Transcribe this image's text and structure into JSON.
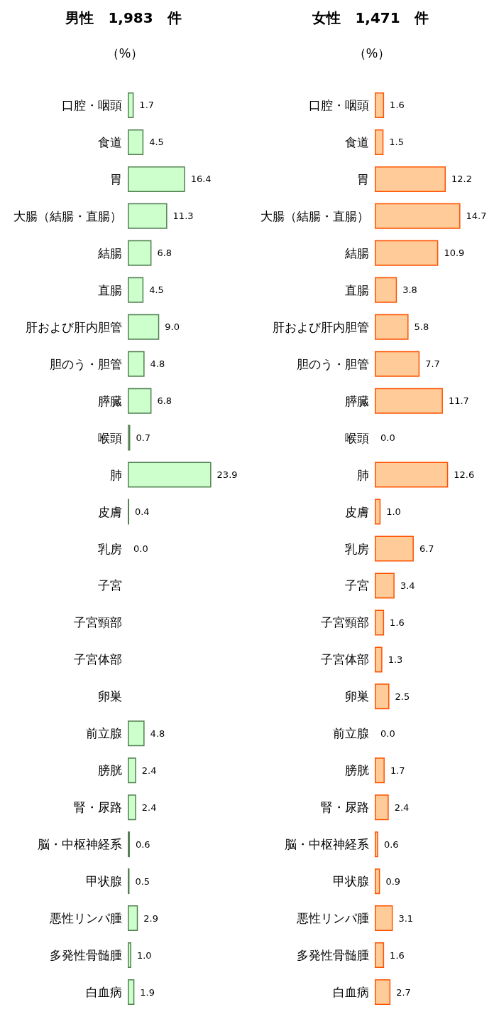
{
  "chart_data": [
    {
      "type": "bar",
      "orientation": "horizontal",
      "title": "男性　1,983　件",
      "xlabel": "（%）",
      "categories": [
        "口腔・咽頭",
        "食道",
        "胃",
        "大腸（結腸・直腸）",
        "結腸",
        "直腸",
        "肝および肝内胆管",
        "胆のう・胆管",
        "膵臓",
        "喉頭",
        "肺",
        "皮膚",
        "乳房",
        "子宮",
        "子宮頸部",
        "子宮体部",
        "卵巣",
        "前立腺",
        "膀胱",
        "腎・尿路",
        "脳・中枢神経系",
        "甲状腺",
        "悪性リンパ腫",
        "多発性骨髄腫",
        "白血病"
      ],
      "values": [
        1.7,
        4.5,
        16.4,
        11.3,
        6.8,
        4.5,
        9.0,
        4.8,
        6.8,
        0.7,
        23.9,
        0.4,
        0.0,
        null,
        null,
        null,
        null,
        4.8,
        2.4,
        2.4,
        0.6,
        0.5,
        2.9,
        1.0,
        1.9
      ],
      "value_labels": [
        "1.7",
        "4.5",
        "16.4",
        "11.3",
        "6.8",
        "4.5",
        "9.0",
        "4.8",
        "6.8",
        "0.7",
        "23.9",
        "0.4",
        "0.0",
        null,
        null,
        null,
        null,
        "4.8",
        "2.4",
        "2.4",
        "0.6",
        "0.5",
        "2.9",
        "1.0",
        "1.9"
      ],
      "color": "#ccffcc"
    },
    {
      "type": "bar",
      "orientation": "horizontal",
      "title": "女性　1,471　件",
      "xlabel": "（%）",
      "categories": [
        "口腔・咽頭",
        "食道",
        "胃",
        "大腸（結腸・直腸）",
        "結腸",
        "直腸",
        "肝および肝内胆管",
        "胆のう・胆管",
        "膵臓",
        "喉頭",
        "肺",
        "皮膚",
        "乳房",
        "子宮",
        "子宮頸部",
        "子宮体部",
        "卵巣",
        "前立腺",
        "膀胱",
        "腎・尿路",
        "脳・中枢神経系",
        "甲状腺",
        "悪性リンパ腫",
        "多発性骨髄腫",
        "白血病"
      ],
      "values": [
        1.6,
        1.5,
        12.2,
        14.7,
        10.9,
        3.8,
        5.8,
        7.7,
        11.7,
        0.0,
        12.6,
        1.0,
        6.7,
        3.4,
        1.6,
        1.3,
        2.5,
        0.0,
        1.7,
        2.4,
        0.6,
        0.9,
        3.1,
        1.6,
        2.7
      ],
      "value_labels": [
        "1.6",
        "1.5",
        "12.2",
        "14.7",
        "10.9",
        "3.8",
        "5.8",
        "7.7",
        "11.7",
        "0.0",
        "12.6",
        "1.0",
        "6.7",
        "3.4",
        "1.6",
        "1.3",
        "2.5",
        "0.0",
        "1.7",
        "2.4",
        "0.6",
        "0.9",
        "3.1",
        "1.6",
        "2.7"
      ],
      "color": "#ffcc99"
    }
  ]
}
